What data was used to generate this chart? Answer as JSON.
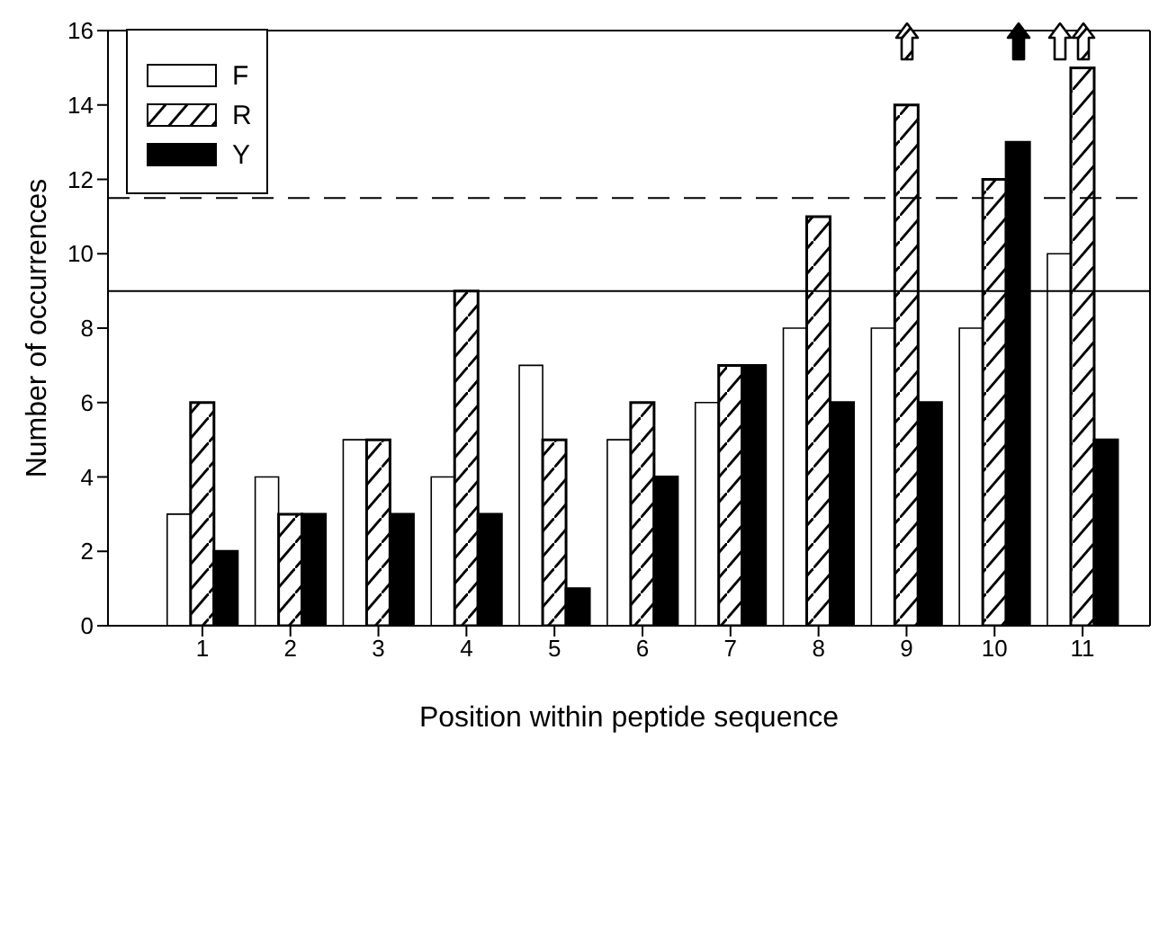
{
  "chart_data": {
    "type": "bar",
    "xlabel": "Position within peptide sequence",
    "ylabel": "Number of occurrences",
    "categories": [
      "1",
      "2",
      "3",
      "4",
      "5",
      "6",
      "7",
      "8",
      "9",
      "10",
      "11"
    ],
    "series": [
      {
        "name": "F",
        "color": "#ffffff",
        "values": [
          3,
          4,
          5,
          4,
          7,
          5,
          6,
          8,
          8,
          8,
          10
        ]
      },
      {
        "name": "R",
        "color": "#000000",
        "values": [
          6,
          3,
          5,
          9,
          5,
          6,
          7,
          11,
          14,
          12,
          15
        ]
      },
      {
        "name": "Y",
        "color": "#000000",
        "values": [
          2,
          3,
          3,
          3,
          1,
          4,
          7,
          6,
          6,
          13,
          5
        ]
      }
    ],
    "ylim": [
      0,
      16
    ],
    "yticks": [
      0,
      2,
      4,
      6,
      8,
      10,
      12,
      14,
      16
    ],
    "ref_lines": [
      {
        "axis": "y",
        "value": 9,
        "color": "#000000",
        "line_style": "solid"
      },
      {
        "axis": "y",
        "value": 11.5,
        "color": "#000000",
        "line_style": "dashed"
      }
    ],
    "legend": "top left"
  }
}
